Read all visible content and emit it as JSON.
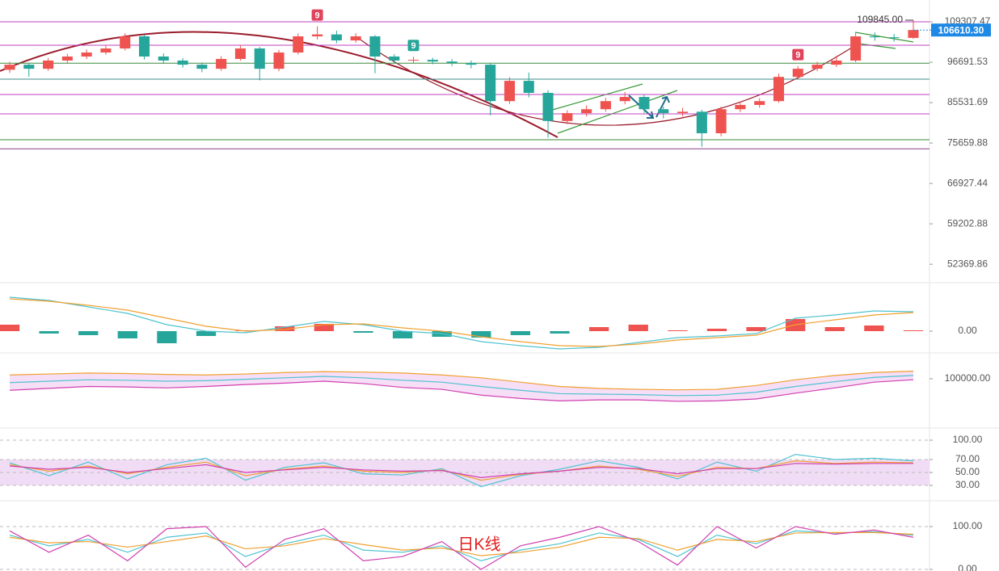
{
  "chart_data": [
    {
      "type": "candlestick",
      "scale": "log",
      "ylim": [
        50130,
        116790
      ],
      "yticks": [
        109307.47,
        96691.53,
        85531.69,
        75659.88,
        66927.44,
        59202.88,
        52369.86
      ],
      "up_color": "#ef5350",
      "down_color": "#26a69a",
      "grid": false,
      "open": [
        94500,
        95970,
        94790,
        97180,
        98380,
        99580,
        100810,
        104590,
        98380,
        97180,
        95970,
        94790,
        97660,
        100810,
        94790,
        99580,
        104590,
        105200,
        103310,
        104590,
        98380,
        97180,
        97400,
        96900,
        96450,
        95970,
        85920,
        91380,
        88100,
        80890,
        82850,
        83840,
        85920,
        87010,
        83840,
        82850,
        83200,
        77940,
        83840,
        84930,
        85920,
        92480,
        94790,
        95970,
        97180,
        104590,
        104300,
        104100
      ],
      "high": [
        96800,
        96500,
        97900,
        99200,
        100500,
        101800,
        105600,
        105100,
        99300,
        97900,
        96600,
        98500,
        101900,
        101300,
        100400,
        105500,
        107800,
        106400,
        105600,
        105000,
        99100,
        98300,
        98000,
        97600,
        97200,
        96500,
        92400,
        93700,
        88800,
        83600,
        84800,
        86800,
        88300,
        87600,
        84500,
        84200,
        83700,
        84500,
        85800,
        86700,
        93400,
        95600,
        96800,
        98600,
        105600,
        105800,
        105300,
        109845
      ],
      "low": [
        93600,
        92500,
        94200,
        96500,
        97600,
        98900,
        100200,
        97500,
        96200,
        95100,
        93800,
        94200,
        97100,
        91500,
        94100,
        99000,
        103600,
        102400,
        102600,
        93500,
        96300,
        96400,
        96100,
        95600,
        94900,
        82300,
        85200,
        86900,
        76900,
        80100,
        82000,
        83200,
        85100,
        82900,
        81500,
        82000,
        74800,
        77200,
        83100,
        84200,
        85500,
        91800,
        94100,
        95300,
        96700,
        103200,
        102900,
        103800
      ],
      "close": [
        95970,
        94790,
        97180,
        98380,
        99580,
        100810,
        104590,
        98380,
        97180,
        95970,
        94790,
        97660,
        100810,
        94790,
        99580,
        104590,
        105200,
        103310,
        104590,
        98380,
        97180,
        97400,
        96900,
        96450,
        95970,
        85920,
        91380,
        88100,
        80890,
        82850,
        83840,
        85920,
        87010,
        83840,
        82850,
        83200,
        77940,
        83840,
        84930,
        85920,
        92480,
        94790,
        95970,
        97180,
        104590,
        104300,
        104100,
        106610.3
      ],
      "levels": [
        {
          "value": 109307,
          "color": "#c040c0"
        },
        {
          "value": 101810,
          "color": "#c040c0"
        },
        {
          "value": 96400,
          "color": "#3d8b3d"
        },
        {
          "value": 91840,
          "color": "#3d8b8b"
        },
        {
          "value": 87670,
          "color": "#c040c0"
        },
        {
          "value": 82660,
          "color": "#c040c0"
        },
        {
          "value": 76420,
          "color": "#3d8b3d"
        },
        {
          "value": 74350,
          "color": "#8b3d8b"
        }
      ],
      "markers": [
        {
          "index": 16,
          "label": "9",
          "color": "#e0435a"
        },
        {
          "index": 21,
          "label": "9",
          "color": "#26a69a"
        },
        {
          "index": 41,
          "label": "9",
          "color": "#e0435a"
        }
      ],
      "high_marker": {
        "value": 109845,
        "label": "109845.00"
      },
      "last_price": {
        "value": 106610.3,
        "label": "106610.30",
        "color": "#1e88e5"
      },
      "annotation": "日K线"
    },
    {
      "type": "macd",
      "ylim": [
        -3000,
        5000
      ],
      "yticks": [
        {
          "value": 0,
          "label": "0.00"
        }
      ],
      "up_color": "#ef5350",
      "down_color": "#26a69a",
      "values": [
        800,
        -300,
        -500,
        -900,
        -1500,
        -600,
        100,
        600,
        900,
        -200,
        -900,
        -700,
        -800,
        -500,
        -300,
        500,
        800,
        100,
        300,
        500,
        1500,
        500,
        700,
        100
      ],
      "series": [
        {
          "color": "#4fc3d0",
          "values": [
            4200,
            3800,
            3000,
            2200,
            800,
            0,
            -200,
            500,
            1200,
            800,
            0,
            -300,
            -1300,
            -1800,
            -2200,
            -2000,
            -1400,
            -800,
            -600,
            -300,
            1600,
            2000,
            2500,
            2400
          ]
        },
        {
          "color": "#f0a030",
          "values": [
            4000,
            3700,
            3200,
            2600,
            1600,
            600,
            0,
            200,
            800,
            900,
            400,
            0,
            -700,
            -1300,
            -1800,
            -1900,
            -1600,
            -1100,
            -800,
            -500,
            800,
            1400,
            2000,
            2300
          ]
        }
      ]
    },
    {
      "type": "line",
      "ylim": [
        52900,
        124400
      ],
      "yticks": [
        {
          "value": 100000,
          "label": "100000.00"
        }
      ],
      "fill_between": [
        0,
        2
      ],
      "fill_color": "#f4d6f4",
      "series": [
        {
          "color": "#f0a030",
          "values": [
            104000,
            105000,
            106000,
            105500,
            104500,
            104000,
            105000,
            106500,
            107500,
            107000,
            106000,
            104000,
            101000,
            96500,
            92000,
            90000,
            89000,
            88500,
            89000,
            93000,
            99000,
            103500,
            106500,
            108000
          ]
        },
        {
          "color": "#4fc3d0",
          "values": [
            96000,
            97500,
            99000,
            98500,
            97500,
            98000,
            99500,
            101000,
            102500,
            101000,
            98500,
            96500,
            92000,
            88000,
            84500,
            84000,
            83500,
            82500,
            83000,
            86000,
            92000,
            97000,
            101500,
            103500
          ]
        },
        {
          "color": "#d040b0",
          "values": [
            88000,
            90000,
            92000,
            91500,
            90500,
            92000,
            94000,
            95500,
            97500,
            95000,
            91000,
            89000,
            83000,
            79500,
            77000,
            78000,
            78000,
            76500,
            77000,
            79000,
            85000,
            90500,
            96500,
            99000
          ]
        }
      ]
    },
    {
      "type": "line",
      "ylim": [
        16.25,
        106.25
      ],
      "grid": true,
      "band": [
        30,
        70
      ],
      "fill_color": "#f1dcf6",
      "yticks": [
        {
          "value": 100,
          "label": "100.00"
        },
        {
          "value": 70,
          "label": "70.00"
        },
        {
          "value": 50,
          "label": "50.00"
        },
        {
          "value": 30,
          "label": "30.00"
        }
      ],
      "series": [
        {
          "color": "#4fc3d0",
          "values": [
            65,
            45,
            66,
            40,
            62,
            72,
            38,
            58,
            65,
            48,
            46,
            56,
            28,
            45,
            55,
            68,
            58,
            40,
            66,
            52,
            78,
            70,
            72,
            68
          ]
        },
        {
          "color": "#f0a030",
          "values": [
            62,
            52,
            60,
            48,
            58,
            66,
            45,
            55,
            60,
            52,
            50,
            54,
            38,
            47,
            52,
            60,
            55,
            44,
            58,
            56,
            68,
            64,
            66,
            65
          ]
        },
        {
          "color": "#d040b0",
          "values": [
            60,
            55,
            58,
            50,
            56,
            62,
            50,
            54,
            58,
            54,
            52,
            53,
            42,
            48,
            52,
            58,
            56,
            48,
            56,
            56,
            64,
            63,
            64,
            64
          ]
        }
      ]
    },
    {
      "type": "line",
      "ylim": [
        -3.8,
        141.5
      ],
      "grid": true,
      "yticks": [
        {
          "value": 100,
          "label": "100.00"
        },
        {
          "value": 0,
          "label": "0.00"
        }
      ],
      "series": [
        {
          "color": "#4fc3d0",
          "values": [
            80,
            55,
            70,
            40,
            75,
            85,
            30,
            60,
            80,
            45,
            40,
            55,
            20,
            45,
            60,
            85,
            70,
            30,
            80,
            60,
            90,
            85,
            88,
            80
          ]
        },
        {
          "color": "#f0a030",
          "values": [
            75,
            62,
            65,
            52,
            65,
            78,
            48,
            55,
            72,
            58,
            45,
            50,
            32,
            40,
            52,
            75,
            72,
            45,
            70,
            65,
            85,
            86,
            86,
            82
          ]
        },
        {
          "color": "#d040b0",
          "values": [
            90,
            40,
            80,
            20,
            95,
            100,
            5,
            70,
            95,
            20,
            30,
            65,
            0,
            55,
            75,
            100,
            65,
            10,
            100,
            50,
            100,
            82,
            92,
            75
          ]
        }
      ]
    }
  ]
}
